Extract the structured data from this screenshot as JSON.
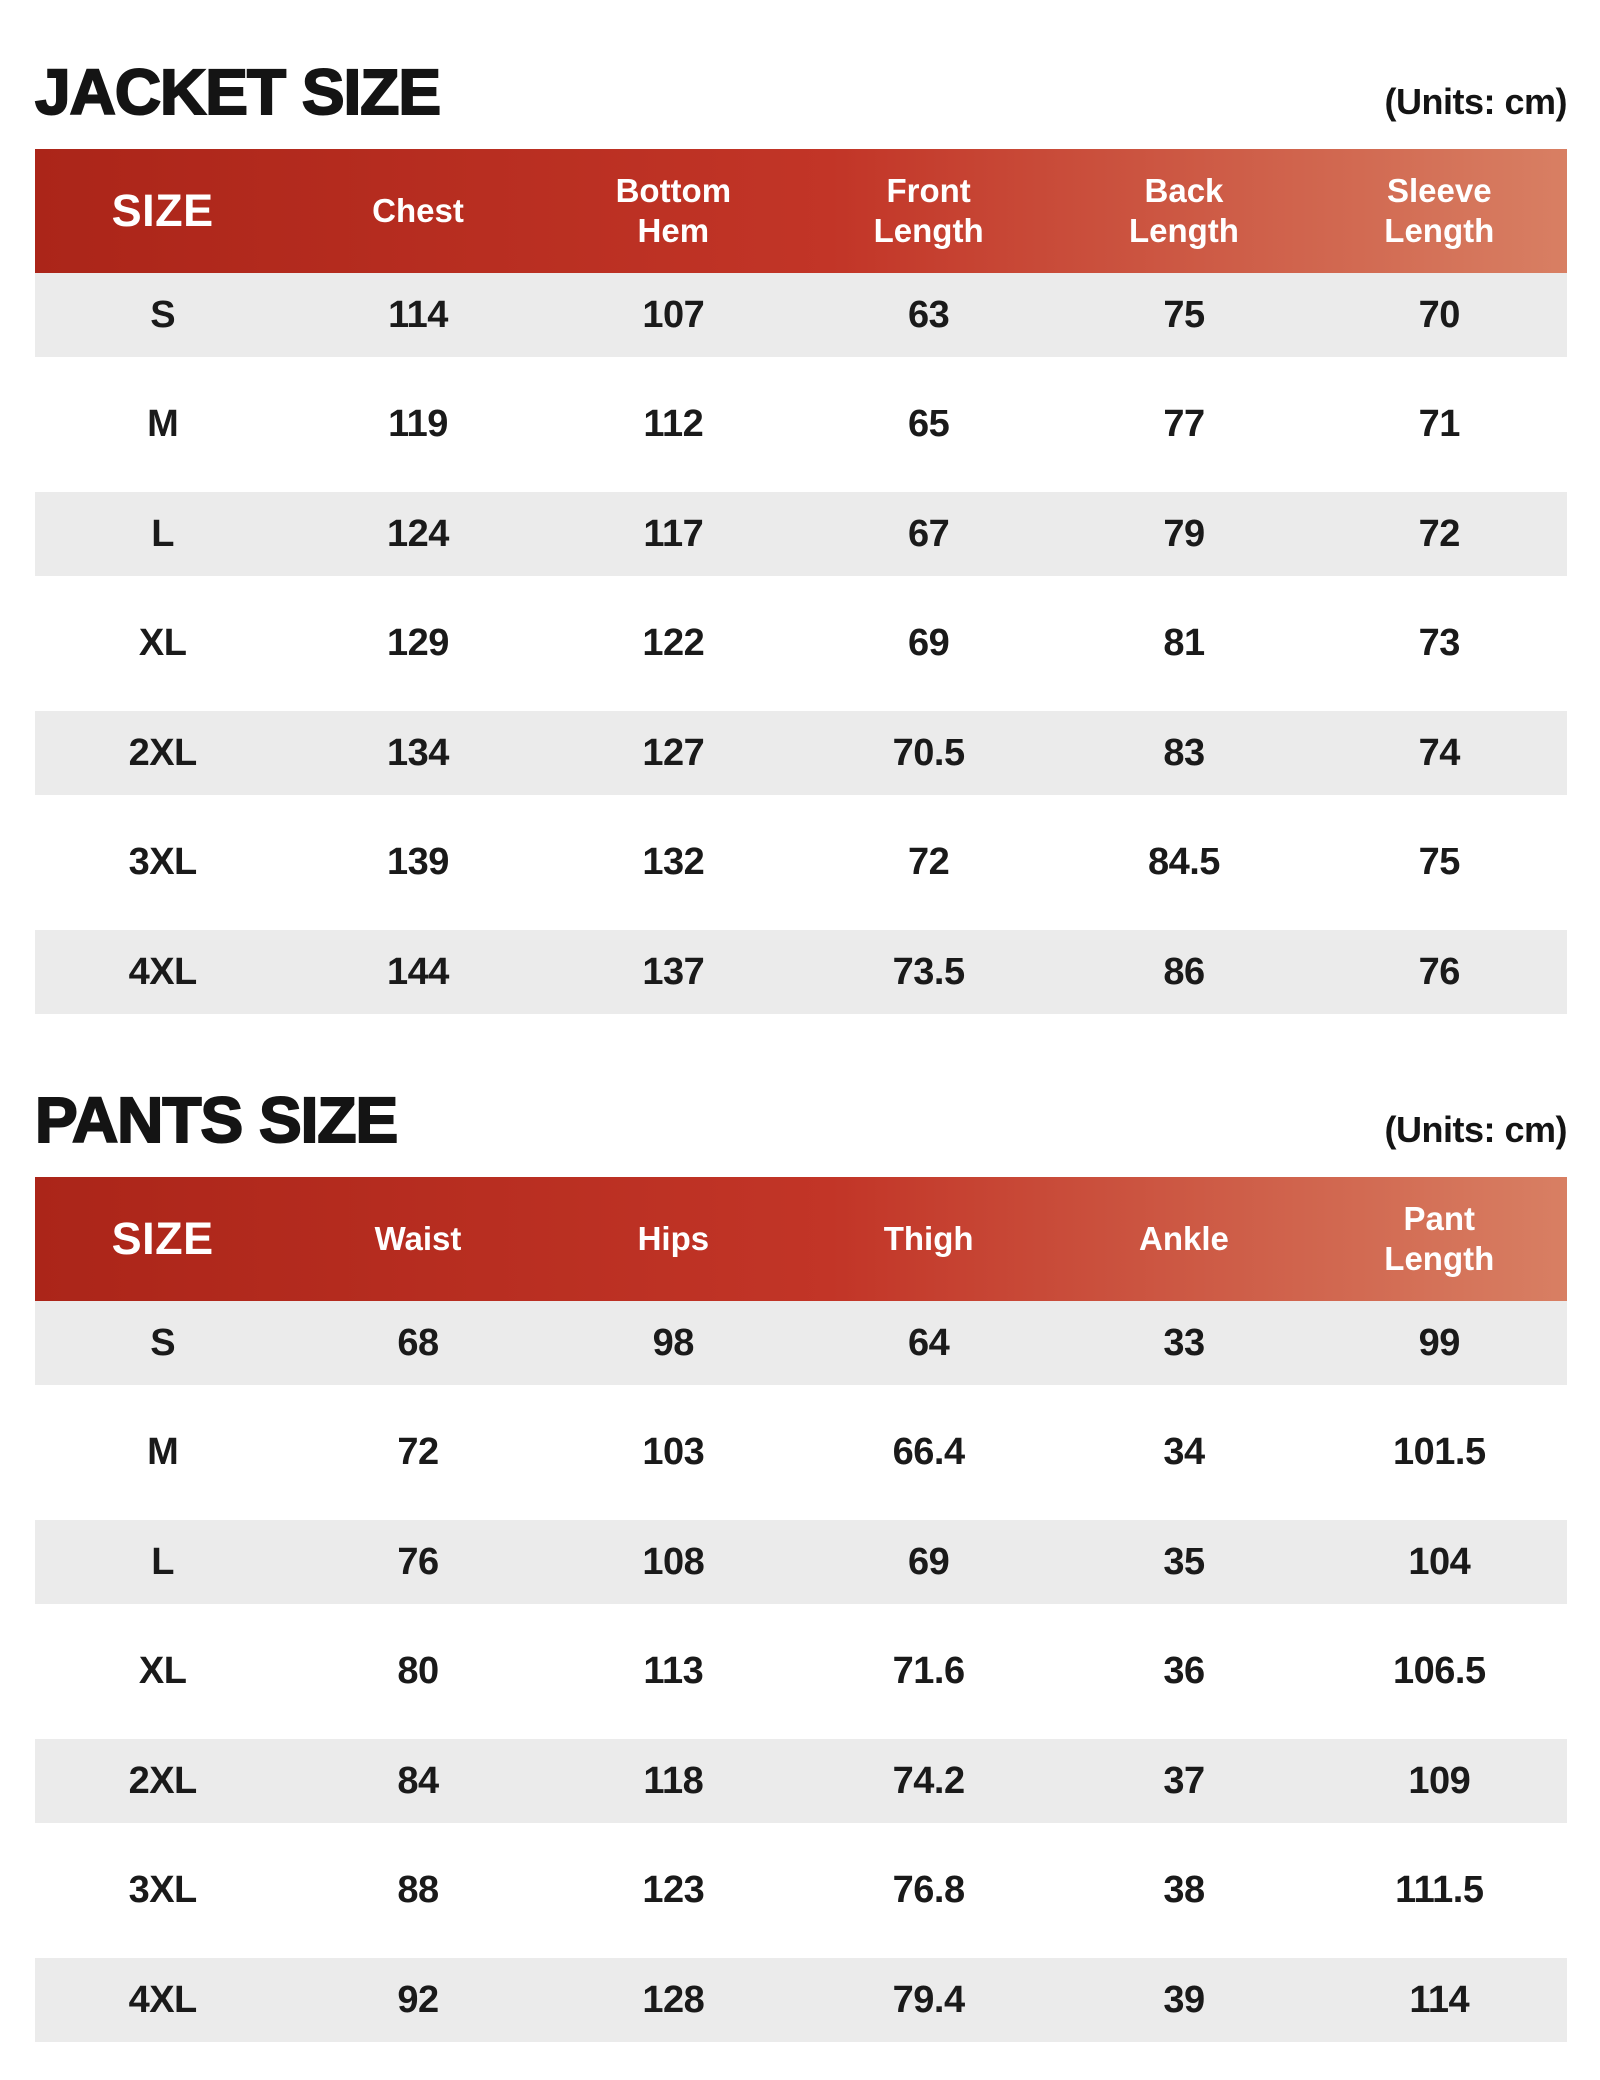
{
  "chart_data": [
    {
      "type": "table",
      "title": "JACKET SIZE",
      "units_label": "(Units: cm)",
      "columns": [
        "SIZE",
        "Chest",
        "Bottom Hem",
        "Front Length",
        "Back Length",
        "Sleeve Length"
      ],
      "rows": [
        [
          "S",
          114,
          107,
          63,
          75,
          70
        ],
        [
          "M",
          119,
          112,
          65,
          77,
          71
        ],
        [
          "L",
          124,
          117,
          67,
          79,
          72
        ],
        [
          "XL",
          129,
          122,
          69,
          81,
          73
        ],
        [
          "2XL",
          134,
          127,
          70.5,
          83,
          74
        ],
        [
          "3XL",
          139,
          132,
          72,
          84.5,
          75
        ],
        [
          "4XL",
          144,
          137,
          73.5,
          86,
          76
        ]
      ]
    },
    {
      "type": "table",
      "title": "PANTS SIZE",
      "units_label": "(Units: cm)",
      "columns": [
        "SIZE",
        "Waist",
        "Hips",
        "Thigh",
        "Ankle",
        "Pant Length"
      ],
      "rows": [
        [
          "S",
          68,
          98,
          64,
          33,
          99
        ],
        [
          "M",
          72,
          103,
          66.4,
          34,
          101.5
        ],
        [
          "L",
          76,
          108,
          69,
          35,
          104
        ],
        [
          "XL",
          80,
          113,
          71.6,
          36,
          106.5
        ],
        [
          "2XL",
          84,
          118,
          74.2,
          37,
          109
        ],
        [
          "3XL",
          88,
          123,
          76.8,
          38,
          111.5
        ],
        [
          "4XL",
          92,
          128,
          79.4,
          39,
          114
        ]
      ]
    }
  ],
  "colors": {
    "header_gradient_start": "#ab2519",
    "header_gradient_mid": "#c23527",
    "header_gradient_end": "#d87f63",
    "header_text": "#ffffff",
    "row_alt_bg": "#ebebeb",
    "row_bg": "#ffffff",
    "text": "#1a1a1a"
  }
}
